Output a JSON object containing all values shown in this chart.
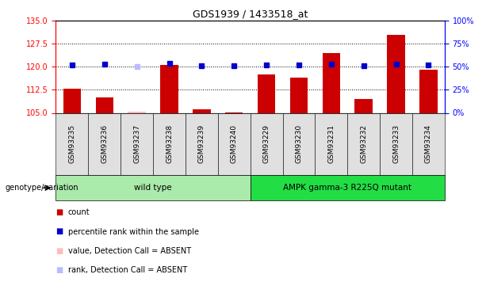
{
  "title": "GDS1939 / 1433518_at",
  "samples": [
    "GSM93235",
    "GSM93236",
    "GSM93237",
    "GSM93238",
    "GSM93239",
    "GSM93240",
    "GSM93229",
    "GSM93230",
    "GSM93231",
    "GSM93232",
    "GSM93233",
    "GSM93234"
  ],
  "red_values": [
    112.8,
    110.0,
    105.3,
    120.5,
    106.2,
    105.2,
    117.5,
    116.5,
    124.5,
    109.5,
    130.5,
    119.0
  ],
  "absent_red": [
    false,
    false,
    true,
    false,
    false,
    false,
    false,
    false,
    false,
    false,
    false,
    false
  ],
  "blue_values_pct": [
    52,
    53,
    50,
    54,
    51,
    51,
    52,
    52,
    53,
    51,
    53,
    52
  ],
  "absent_blue": [
    false,
    false,
    true,
    false,
    false,
    false,
    false,
    false,
    false,
    false,
    false,
    false
  ],
  "ylim_left": [
    105,
    135
  ],
  "ylim_right": [
    0,
    100
  ],
  "yticks_left": [
    105,
    112.5,
    120,
    127.5,
    135
  ],
  "yticks_right": [
    0,
    25,
    50,
    75,
    100
  ],
  "groups": [
    {
      "label": "wild type",
      "indices": [
        0,
        1,
        2,
        3,
        4,
        5
      ],
      "color": "#aaeaaa"
    },
    {
      "label": "AMPK gamma-3 R225Q mutant",
      "indices": [
        6,
        7,
        8,
        9,
        10,
        11
      ],
      "color": "#22dd44"
    }
  ],
  "bar_color_normal": "#cc0000",
  "bar_color_absent": "#ffbbbb",
  "dot_color_normal": "#0000cc",
  "dot_color_absent": "#bbbbff",
  "legend_items": [
    {
      "label": "count",
      "color": "#cc0000"
    },
    {
      "label": "percentile rank within the sample",
      "color": "#0000cc"
    },
    {
      "label": "value, Detection Call = ABSENT",
      "color": "#ffbbbb"
    },
    {
      "label": "rank, Detection Call = ABSENT",
      "color": "#bbbbff"
    }
  ],
  "tick_fontsize": 7,
  "sample_fontsize": 6.5,
  "genotype_label": "genotype/variation"
}
